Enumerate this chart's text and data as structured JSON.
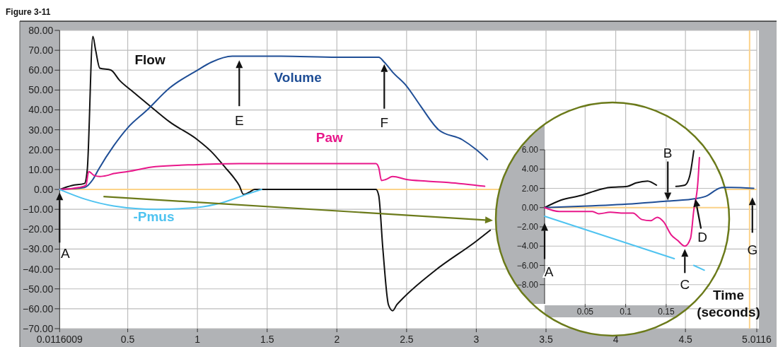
{
  "chart_data": [
    {
      "type": "line",
      "title": "Figure 3-11",
      "xlabel": "Time (seconds)",
      "xlim": [
        0.0116009,
        5.0116
      ],
      "xticks": [
        {
          "value": 0.0116009,
          "label": "0.0116009"
        },
        0.5,
        1,
        1.5,
        2,
        2.5,
        3,
        3.5,
        4,
        4.5,
        {
          "value": 5.0116,
          "label": "5.0116"
        }
      ],
      "ylim": [
        -70,
        80
      ],
      "yticks": [
        {
          "value": 80,
          "label": "80.00"
        },
        {
          "value": 70,
          "label": "70.00"
        },
        {
          "value": 60,
          "label": "60.00"
        },
        {
          "value": 50,
          "label": "50.00"
        },
        {
          "value": 40,
          "label": "40.00"
        },
        {
          "value": 30,
          "label": "30.00"
        },
        {
          "value": 20,
          "label": "20.00"
        },
        {
          "value": 10,
          "label": "10.00"
        },
        {
          "value": 0,
          "label": "0.00"
        },
        {
          "value": -10,
          "label": "−10.00"
        },
        {
          "value": -20,
          "label": "−20.00"
        },
        {
          "value": -30,
          "label": "−30.00"
        },
        {
          "value": -40,
          "label": "−40.00"
        },
        {
          "value": -50,
          "label": "−50.00"
        },
        {
          "value": -60,
          "label": "−60.00"
        },
        {
          "value": -70,
          "label": "−70.00"
        }
      ],
      "grid": true,
      "legend": false,
      "series": [
        {
          "name": "Flow",
          "color": "#111111",
          "x": [
            0.0116009,
            0.1,
            0.19,
            0.21,
            0.25,
            0.27,
            0.3,
            0.38,
            0.44,
            0.54,
            0.66,
            0.8,
            1.0,
            1.1,
            1.2,
            1.26,
            1.3,
            1.33,
            1.37,
            1.41,
            1.6,
            2.0,
            2.28,
            2.3,
            2.33,
            2.37,
            2.4,
            2.43,
            2.47,
            2.7,
            3.0,
            3.1
          ],
          "values": [
            0,
            2,
            3,
            10,
            77,
            70,
            61,
            60,
            55,
            49,
            42,
            34,
            25,
            19,
            11,
            6,
            2,
            -2.5,
            -1.5,
            0,
            0,
            0,
            0,
            -3,
            -30,
            -58,
            -61,
            -58,
            -55,
            -41,
            -26,
            -20.5
          ]
        },
        {
          "name": "Volume",
          "color": "#1f4e96",
          "x": [
            0.0116009,
            0.19,
            0.25,
            0.29,
            0.4,
            0.5,
            0.64,
            0.8,
            1.0,
            1.1,
            1.25,
            1.6,
            2.0,
            2.3,
            2.34,
            2.4,
            2.5,
            2.6,
            2.73,
            2.9,
            3.0,
            3.08
          ],
          "values": [
            0,
            1,
            5,
            10,
            22,
            31,
            40,
            51,
            60,
            64,
            67,
            67,
            66.5,
            66.5,
            64,
            59,
            52,
            42,
            30,
            25,
            20,
            15
          ]
        },
        {
          "name": "Paw",
          "color": "#e8178a",
          "x": [
            0.0116009,
            0.15,
            0.2,
            0.22,
            0.26,
            0.3,
            0.35,
            0.4,
            0.5,
            0.7,
            1.0,
            1.3,
            2.28,
            2.3,
            2.32,
            2.35,
            2.4,
            2.5,
            2.64,
            2.8,
            3.06
          ],
          "values": [
            0,
            1,
            2,
            9,
            7,
            6.5,
            7,
            8,
            9,
            11.5,
            12.5,
            13,
            13,
            11,
            4.5,
            5,
            6.5,
            5,
            4.2,
            3.5,
            1.6
          ]
        },
        {
          "name": "-Pmus",
          "color": "#4fc3f0",
          "x": [
            0.0116009,
            0.2,
            0.4,
            0.71,
            1.0,
            1.17,
            1.35,
            1.46
          ],
          "values": [
            0,
            -5,
            -8.3,
            -10,
            -9,
            -6.8,
            -2.5,
            0
          ]
        }
      ],
      "ref_lines": [
        {
          "axis": "y",
          "value": 0,
          "color": "#fcd38a"
        },
        {
          "axis": "x",
          "value": 4.96,
          "color": "#fcd38a"
        }
      ],
      "annotations": [
        "A",
        "E",
        "F",
        "G"
      ]
    },
    {
      "type": "line",
      "xlim": [
        0,
        0.26
      ],
      "xticks": [
        0.05,
        0.1,
        0.15
      ],
      "ylim": [
        -10,
        6
      ],
      "yticks": [
        {
          "value": 6,
          "label": "6.00"
        },
        {
          "value": 4,
          "label": "4.00"
        },
        {
          "value": 2,
          "label": "2.00"
        },
        {
          "value": 0,
          "label": "0.00"
        },
        {
          "value": -2,
          "label": "−2.00"
        },
        {
          "value": -4,
          "label": "−4.00"
        },
        {
          "value": -6,
          "label": "−6.00"
        },
        {
          "value": -8,
          "label": "−8.00"
        }
      ],
      "grid": true,
      "series": [
        {
          "color": "#111111",
          "x": [
            0,
            0.02,
            0.045,
            0.067,
            0.08,
            0.102,
            0.113,
            0.127,
            0.138,
            0.15,
            0.162,
            0.173,
            0.179,
            0.184
          ],
          "values": [
            0,
            0.77,
            1.26,
            1.86,
            2.1,
            2.21,
            2.57,
            2.76,
            2.33,
            null,
            2.2,
            2.33,
            3.29,
            5.9
          ]
        },
        {
          "color": "#1f4e96",
          "x": [
            0,
            0.059,
            0.113,
            0.152,
            0.188,
            0.201,
            0.212,
            0.219,
            0.23,
            0.258
          ],
          "values": [
            0,
            0.19,
            0.43,
            0.67,
            0.95,
            1.26,
            1.86,
            2.1,
            2.1,
            2.0
          ]
        },
        {
          "color": "#e8178a",
          "x": [
            0,
            0.018,
            0.059,
            0.067,
            0.081,
            0.098,
            0.109,
            0.12,
            0.131,
            0.139,
            0.147,
            0.156,
            0.164,
            0.173,
            0.18,
            0.184,
            0.189,
            0.191
          ],
          "values": [
            0,
            -0.4,
            -0.4,
            -0.64,
            -0.48,
            -0.57,
            -0.57,
            -1.24,
            -1.36,
            -1.0,
            -1.5,
            -2.81,
            -3.4,
            -4.0,
            -3.2,
            -0.3,
            2.55,
            5.2
          ]
        },
        {
          "color": "#4fc3f0",
          "x": [
            0,
            0.16,
            0.17,
            0.184,
            0.197
          ],
          "values": [
            -0.9,
            -5.3,
            null,
            -6.0,
            -6.5
          ]
        }
      ],
      "ref_lines": [
        {
          "axis": "y",
          "value": 0,
          "color": "#fcd38a"
        }
      ],
      "annotations": [
        "A",
        {
          "text": "B",
          "x": 0.152,
          "y": 0.75
        },
        "C",
        {
          "text": "D",
          "x": 0.186,
          "y": 0.9
        }
      ]
    }
  ]
}
